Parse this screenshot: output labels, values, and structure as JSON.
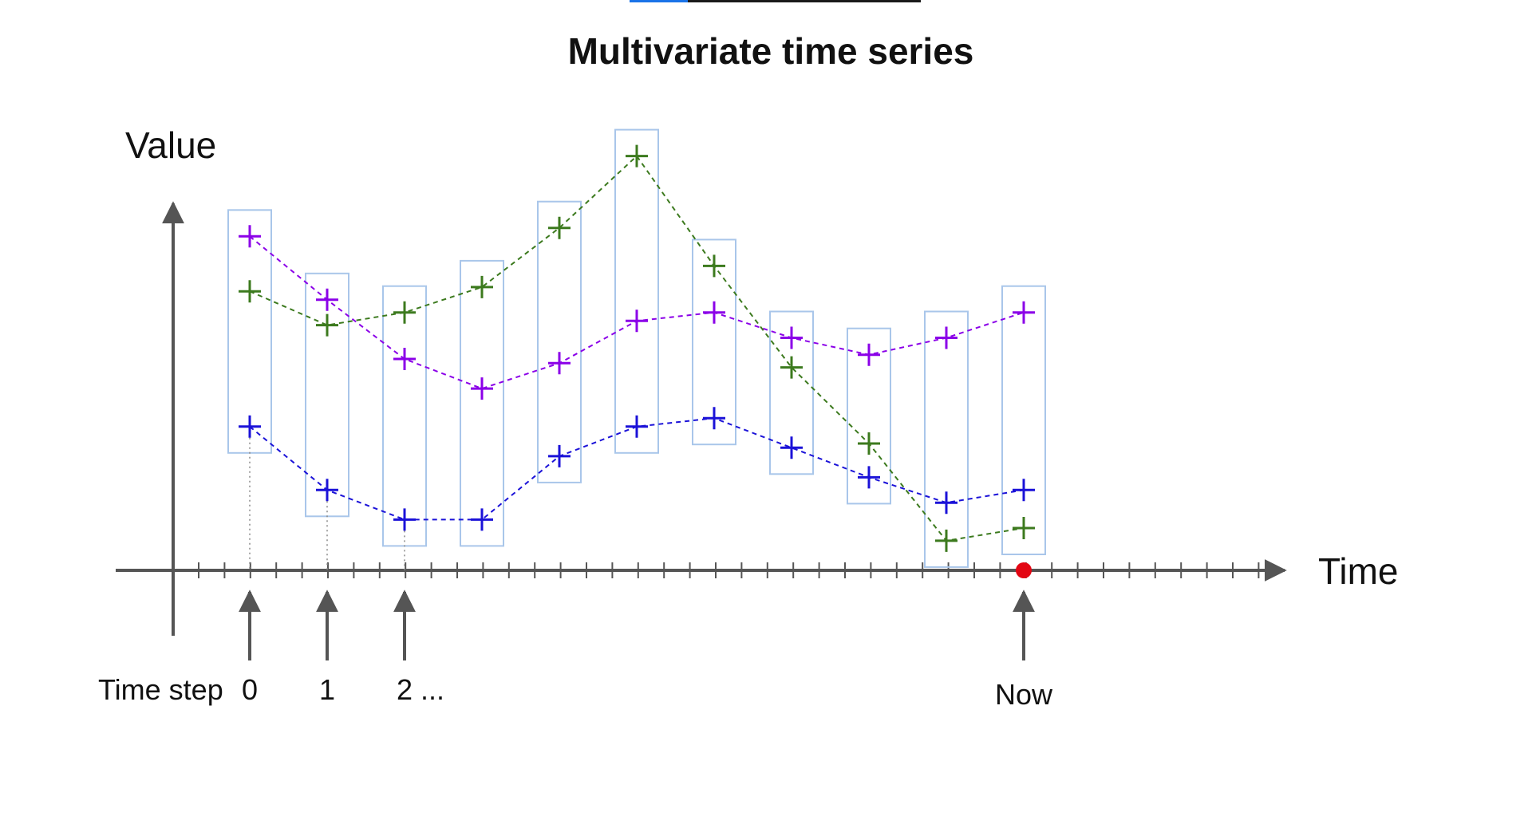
{
  "title": "Multivariate time series",
  "y_axis_label": "Value",
  "x_axis_label": "Time",
  "time_step_caption": "Time step",
  "step_labels": [
    "0",
    "1",
    "2 ..."
  ],
  "now_label": "Now",
  "video_progress": 0.2,
  "colors": {
    "purple": "#8b00e8",
    "green": "#3c7a1e",
    "blue": "#1b12d8",
    "window_box": "#a9c6ea",
    "axis": "#555555",
    "now_dot": "#e30613"
  },
  "chart_data": {
    "type": "line",
    "title": "Multivariate time series",
    "xlabel": "Time",
    "ylabel": "Value",
    "x": [
      0,
      1,
      2,
      3,
      4,
      5,
      6,
      7,
      8,
      9,
      10
    ],
    "ylim": [
      0,
      100
    ],
    "grid": false,
    "series": [
      {
        "color": "purple",
        "values": [
          79,
          64,
          50,
          43,
          49,
          59,
          61,
          55,
          51,
          55,
          61
        ]
      },
      {
        "color": "green",
        "values": [
          66,
          58,
          61,
          67,
          81,
          98,
          72,
          48,
          30,
          7,
          10
        ]
      },
      {
        "color": "blue",
        "values": [
          34,
          19,
          12,
          12,
          27,
          34,
          36,
          29,
          22,
          16,
          19
        ]
      }
    ],
    "now_index": 10
  }
}
